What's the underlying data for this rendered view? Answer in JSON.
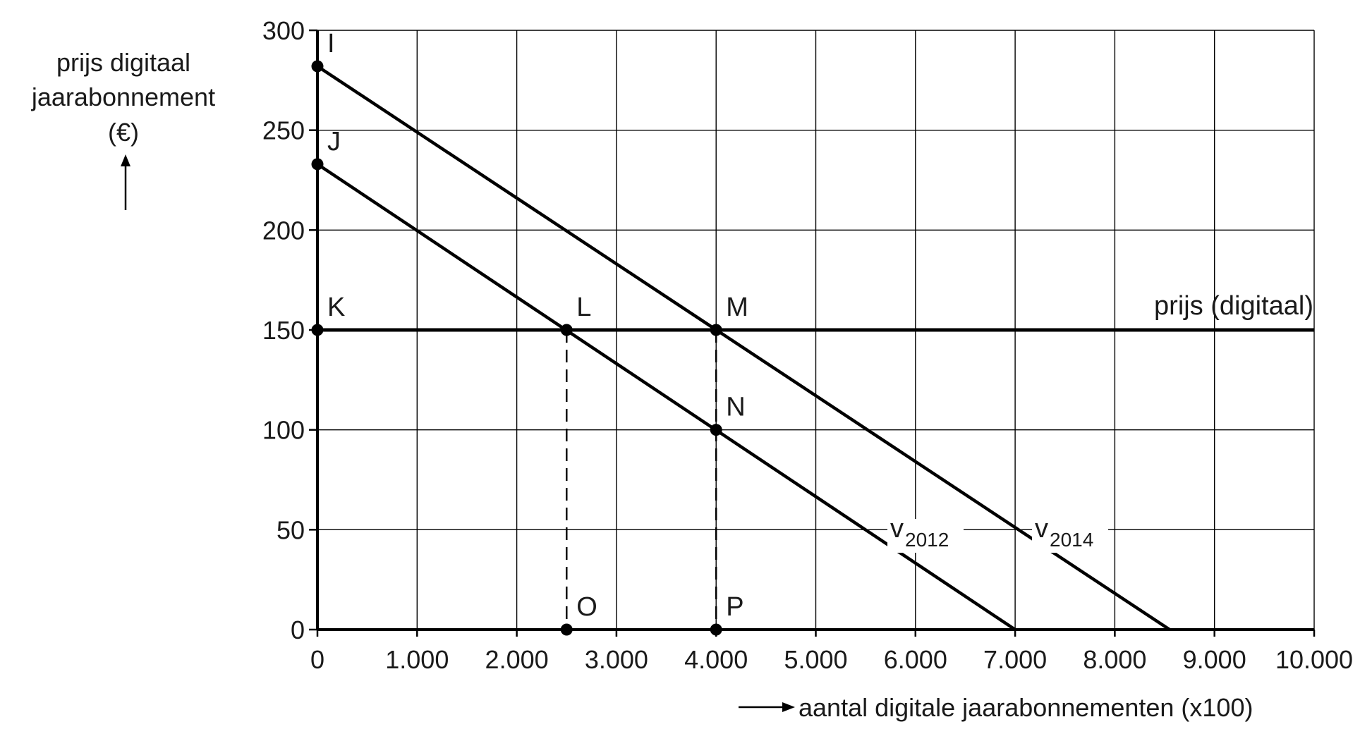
{
  "chart_data": {
    "type": "line",
    "ylabel_lines": [
      "prijs digitaal",
      "jaarabonnement",
      "(€)"
    ],
    "xlabel": "aantal digitale jaarabonnementen (x100)",
    "xlim": [
      0,
      10000
    ],
    "ylim": [
      0,
      300
    ],
    "x_ticks": [
      0,
      1000,
      2000,
      3000,
      4000,
      5000,
      6000,
      7000,
      8000,
      9000,
      10000
    ],
    "x_tick_labels": [
      "0",
      "1.000",
      "2.000",
      "3.000",
      "4.000",
      "5.000",
      "6.000",
      "7.000",
      "8.000",
      "9.000",
      "10.000"
    ],
    "y_ticks": [
      0,
      50,
      100,
      150,
      200,
      250,
      300
    ],
    "y_tick_labels": [
      "0",
      "50",
      "100",
      "150",
      "200",
      "250",
      "300"
    ],
    "grid": true,
    "series": [
      {
        "name": "v2012",
        "name_main": "v",
        "name_sub": "2012",
        "points": [
          [
            0,
            233
          ],
          [
            7000,
            0
          ]
        ]
      },
      {
        "name": "v2014",
        "name_main": "v",
        "name_sub": "2014",
        "points": [
          [
            0,
            282
          ],
          [
            8550,
            0
          ]
        ]
      },
      {
        "name": "prijs (digitaal)",
        "points": [
          [
            0,
            150
          ],
          [
            10000,
            150
          ]
        ]
      }
    ],
    "points": [
      {
        "label": "I",
        "x": 0,
        "y": 282
      },
      {
        "label": "J",
        "x": 0,
        "y": 233
      },
      {
        "label": "K",
        "x": 0,
        "y": 150
      },
      {
        "label": "L",
        "x": 2500,
        "y": 150
      },
      {
        "label": "M",
        "x": 4000,
        "y": 150
      },
      {
        "label": "N",
        "x": 4000,
        "y": 100
      },
      {
        "label": "O",
        "x": 2500,
        "y": 0
      },
      {
        "label": "P",
        "x": 4000,
        "y": 0
      }
    ],
    "dashed_lines": [
      {
        "from": [
          2500,
          150
        ],
        "to": [
          2500,
          0
        ]
      },
      {
        "from": [
          4000,
          150
        ],
        "to": [
          4000,
          0
        ]
      }
    ]
  }
}
